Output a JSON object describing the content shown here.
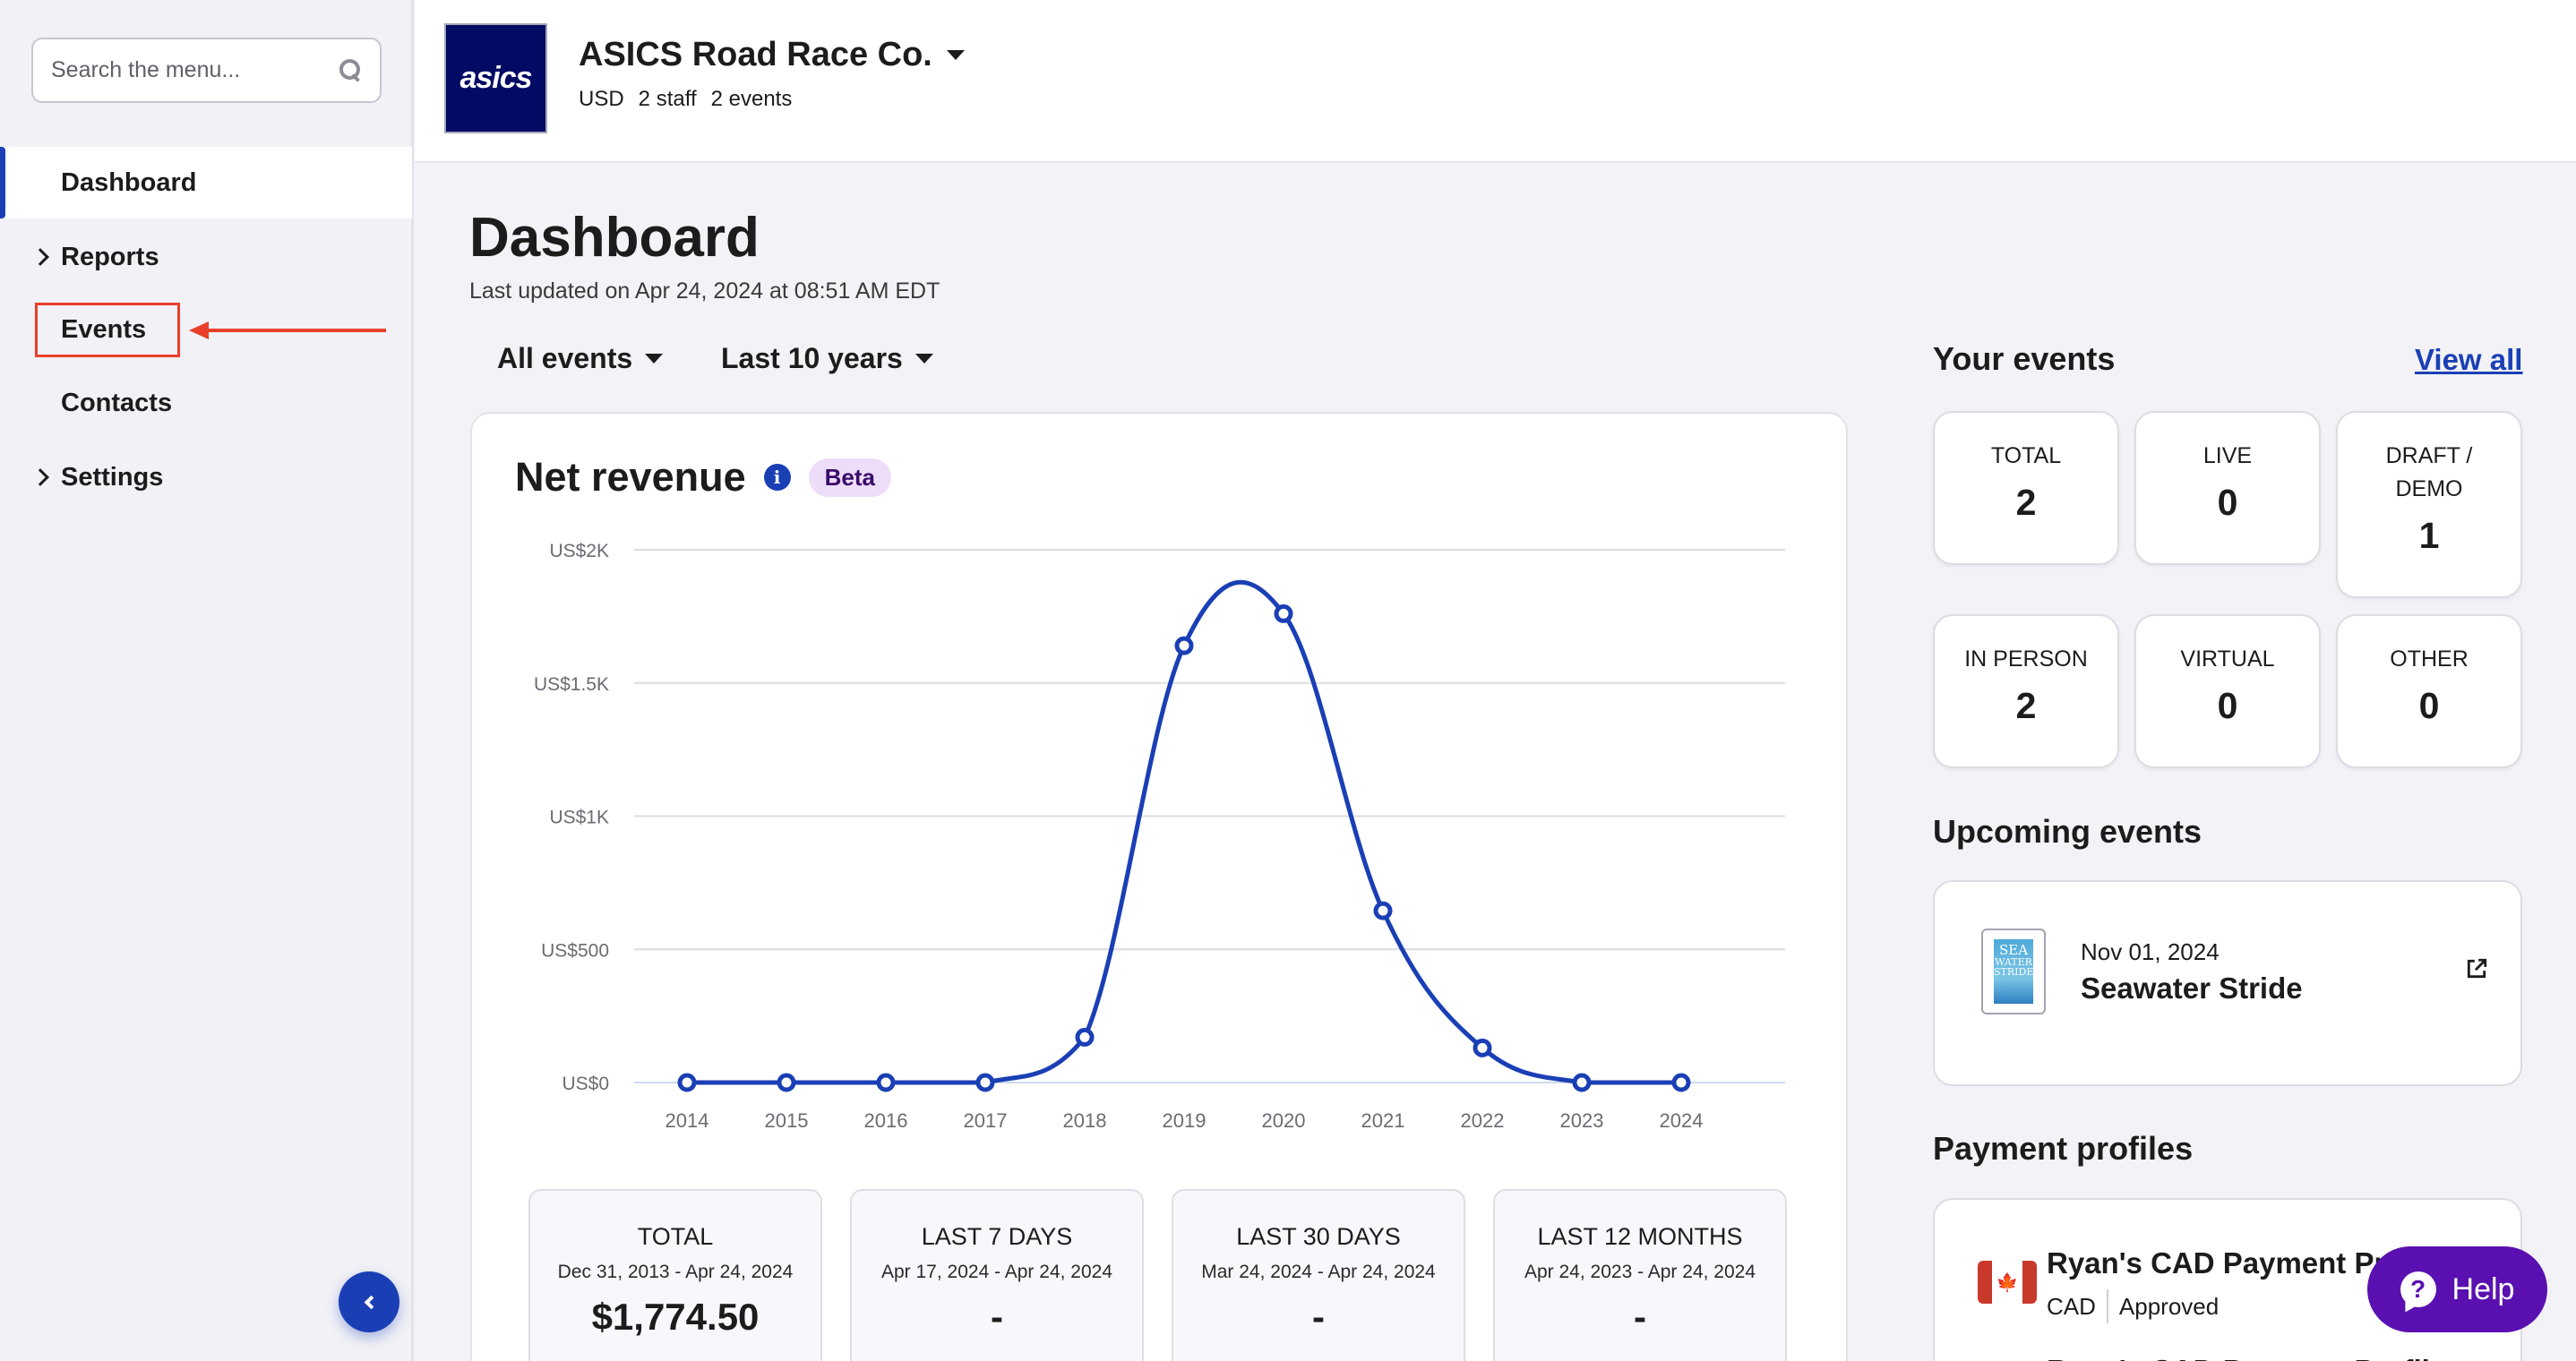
{
  "sidebar": {
    "search_placeholder": "Search the menu...",
    "items": [
      {
        "label": "Dashboard",
        "active": true,
        "expandable": false
      },
      {
        "label": "Reports",
        "active": false,
        "expandable": true
      },
      {
        "label": "Events",
        "active": false,
        "expandable": false,
        "highlighted": true
      },
      {
        "label": "Contacts",
        "active": false,
        "expandable": false
      },
      {
        "label": "Settings",
        "active": false,
        "expandable": true
      }
    ]
  },
  "header": {
    "logo_text": "asics",
    "org_name": "ASICS Road Race Co.",
    "currency": "USD",
    "staff": "2 staff",
    "events": "2 events"
  },
  "main": {
    "title": "Dashboard",
    "last_updated": "Last updated on Apr 24, 2024 at 08:51 AM EDT",
    "filters": {
      "events": "All events",
      "range": "Last 10 years"
    }
  },
  "net_revenue": {
    "title": "Net revenue",
    "badge": "Beta",
    "summary": [
      {
        "title": "TOTAL",
        "range": "Dec 31, 2013 - Apr 24, 2024",
        "value": "$1,774.50"
      },
      {
        "title": "LAST 7 DAYS",
        "range": "Apr 17, 2024 - Apr 24, 2024",
        "value": "-"
      },
      {
        "title": "LAST 30 DAYS",
        "range": "Mar 24, 2024 - Apr 24, 2024",
        "value": "-"
      },
      {
        "title": "LAST 12 MONTHS",
        "range": "Apr 24, 2023 - Apr 24, 2024",
        "value": "-"
      }
    ]
  },
  "chart_data": {
    "type": "line",
    "title": "Net revenue",
    "xlabel": "",
    "ylabel": "",
    "categories": [
      "2014",
      "2015",
      "2016",
      "2017",
      "2018",
      "2019",
      "2020",
      "2021",
      "2022",
      "2023",
      "2024"
    ],
    "series": [
      {
        "name": "Net revenue",
        "values": [
          0,
          0,
          0,
          0,
          170,
          1640,
          1760,
          645,
          130,
          0,
          0
        ]
      }
    ],
    "ylim": [
      0,
      2000
    ],
    "yticks": [
      0,
      500,
      1000,
      1500,
      2000
    ],
    "ytick_labels": [
      "US$0",
      "US$500",
      "US$1K",
      "US$1.5K",
      "US$2K"
    ],
    "grid": true,
    "color": "#1a3fb5"
  },
  "your_events": {
    "title": "Your events",
    "view_all": "View all",
    "stats": [
      {
        "label": "TOTAL",
        "value": "2"
      },
      {
        "label": "LIVE",
        "value": "0"
      },
      {
        "label": "DRAFT / DEMO",
        "value": "1"
      },
      {
        "label": "IN PERSON",
        "value": "2"
      },
      {
        "label": "VIRTUAL",
        "value": "0"
      },
      {
        "label": "OTHER",
        "value": "0"
      }
    ]
  },
  "upcoming_events": {
    "title": "Upcoming events",
    "items": [
      {
        "date": "Nov 01, 2024",
        "name": "Seawater Stride",
        "thumb_lines": [
          "SEA",
          "WATER",
          "STRIDE"
        ]
      }
    ]
  },
  "payment_profiles": {
    "title": "Payment profiles",
    "items": [
      {
        "name": "Ryan's CAD Payment Profile",
        "currency": "CAD",
        "status": "Approved"
      },
      {
        "name": "Ryan's CAD Payment Profile"
      }
    ]
  },
  "help": {
    "label": "Help"
  },
  "colors": {
    "accent": "#1a3fb5",
    "annotation": "#e8402a",
    "help": "#5a10b0",
    "beta_bg": "#eeddf8"
  }
}
